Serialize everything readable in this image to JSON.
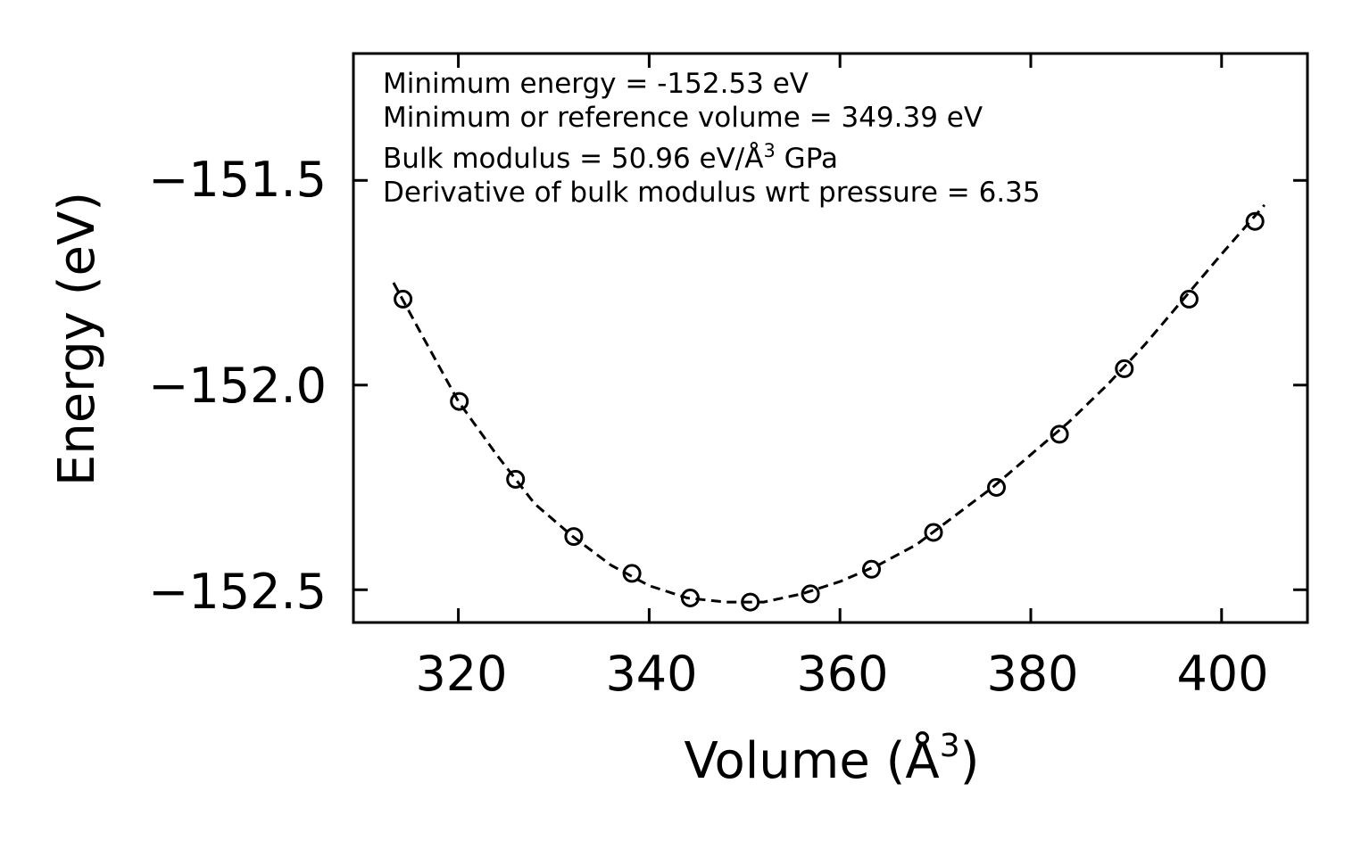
{
  "chart_data": {
    "type": "scatter",
    "title": "",
    "xlabel": "Volume (Å",
    "xlabel_sup": "3",
    "xlabel_close": ")",
    "ylabel": "Energy (eV)",
    "xlim": [
      309,
      409
    ],
    "ylim": [
      -152.58,
      -151.19
    ],
    "xticks": [
      320,
      340,
      360,
      380,
      400
    ],
    "xtick_labels": [
      "320",
      "340",
      "360",
      "380",
      "400"
    ],
    "yticks": [
      -151.5,
      -152.0,
      -152.5
    ],
    "ytick_labels": [
      "−151.5",
      "−152.0",
      "−152.5"
    ],
    "series": [
      {
        "name": "data",
        "style": "open-circle",
        "x": [
          314.2,
          320.1,
          326.0,
          332.1,
          338.2,
          344.3,
          350.6,
          356.9,
          363.3,
          369.8,
          376.4,
          383.0,
          389.8,
          396.6,
          403.5
        ],
        "y": [
          -151.79,
          -152.04,
          -152.23,
          -152.37,
          -152.46,
          -152.52,
          -152.53,
          -152.51,
          -152.45,
          -152.36,
          -152.25,
          -152.12,
          -151.96,
          -151.79,
          -151.6
        ]
      },
      {
        "name": "fit",
        "style": "dashed-line",
        "x": [
          313.2,
          316,
          320,
          324,
          328,
          332,
          336,
          340,
          344,
          348,
          352,
          356,
          360,
          364,
          368,
          372,
          376,
          380,
          384,
          388,
          392,
          396,
          400,
          404.5
        ],
        "y": [
          -151.75,
          -151.87,
          -152.04,
          -152.17,
          -152.29,
          -152.37,
          -152.44,
          -152.49,
          -152.52,
          -152.53,
          -152.53,
          -152.51,
          -152.48,
          -152.44,
          -152.39,
          -152.32,
          -152.25,
          -152.17,
          -152.09,
          -152.0,
          -151.9,
          -151.79,
          -151.68,
          -151.56
        ]
      }
    ],
    "annotations": [
      {
        "id": "min-energy",
        "text": "Minimum energy = -152.53 eV"
      },
      {
        "id": "min-volume",
        "text": "Minimum or reference volume = 349.39 eV"
      },
      {
        "id": "bulk-modulus",
        "text": "Bulk modulus = 50.96 eV/Å",
        "sup": "3",
        "after": " GPa"
      },
      {
        "id": "bulk-derivative",
        "text": "Derivative of bulk modulus wrt pressure = 6.35"
      }
    ],
    "grid": false,
    "legend": "none",
    "colors": {
      "marker": "#000000",
      "line": "#000000",
      "axes": "#000000",
      "background": "#ffffff"
    }
  }
}
